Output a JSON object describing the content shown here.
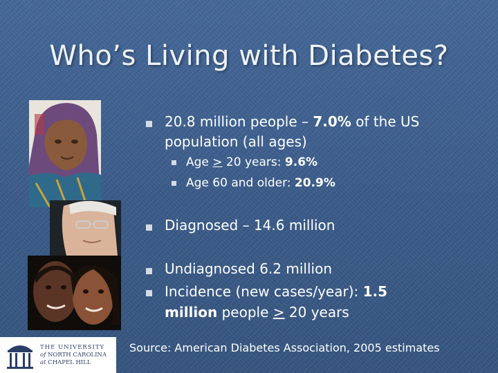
{
  "slide": {
    "title": "Who’s Living with Diabetes?",
    "colors": {
      "background": "#3c5f8c",
      "text": "#ffffff",
      "bullet": "#d6dbe3"
    }
  },
  "bullets": {
    "b1": {
      "line1_pre": "20.8 million people – ",
      "line1_bold": "7.0%",
      "line1_post": " of the US",
      "line2": "population (all ages)"
    },
    "sub1": {
      "pre": "Age ",
      "symbol": ">",
      "mid": " 20 years: ",
      "bold": "9.6%"
    },
    "sub2": {
      "pre": "Age 60 and older: ",
      "bold": "20.9%"
    },
    "b2": {
      "text": "Diagnosed – 14.6  million"
    },
    "b3": {
      "text": "Undiagnosed 6.2 million"
    },
    "b4": {
      "line1_pre": "Incidence (new cases/year):  ",
      "line1_bold": "1.5",
      "line2_bold": "million",
      "line2_pre": " people ",
      "line2_symbol": ">",
      "line2_post": " 20 years"
    }
  },
  "source": "Source:  American Diabetes Association, 2005 estimates",
  "logo": {
    "line1": "THE UNIVERSITY",
    "line2_pre": "of",
    "line2_post": " NORTH CAROLINA",
    "line3_pre": "at",
    "line3_post": " CHAPEL HILL"
  }
}
